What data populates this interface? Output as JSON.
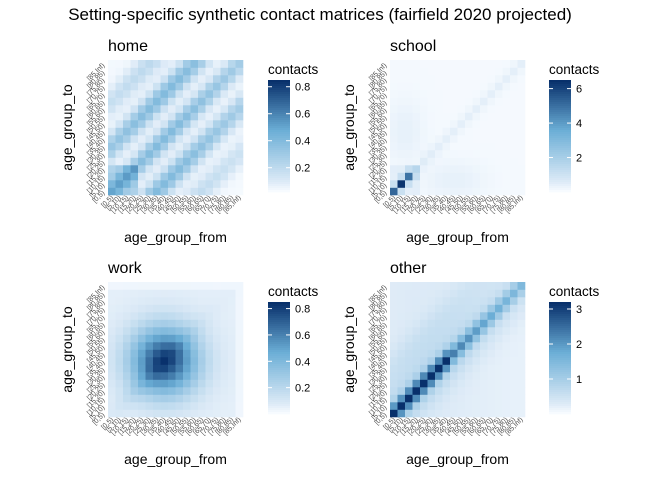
{
  "title": "Setting-specific synthetic contact matrices (fairfield 2020 projected)",
  "colors": {
    "scale_low": "#deebf7",
    "scale_mid": "#6baed6",
    "scale_high": "#08306b",
    "panel_background": "#ebf2fb"
  },
  "chart_data": [
    {
      "type": "heatmap",
      "title": "home",
      "xlabel": "age_group_from",
      "ylabel": "age_group_to",
      "age_groups": [
        "[0,5)",
        "[5,10)",
        "[10,15)",
        "[15,20)",
        "[20,25)",
        "[25,30)",
        "[30,35)",
        "[35,40)",
        "[40,45)",
        "[45,50)",
        "[50,55)",
        "[55,60)",
        "[60,65)",
        "[65,70)",
        "[70,75)",
        "[75,80)",
        "[80,85)",
        "[85,Inf)"
      ],
      "legend_title": "contacts",
      "legend_ticks": [
        0.2,
        0.4,
        0.6,
        0.8
      ],
      "value_range": [
        0.02,
        0.85
      ],
      "pattern": "home"
    },
    {
      "type": "heatmap",
      "title": "school",
      "xlabel": "age_group_from",
      "ylabel": "age_group_to",
      "age_groups": [
        "[0,5)",
        "[5,10)",
        "[10,15)",
        "[15,20)",
        "[20,25)",
        "[25,30)",
        "[30,35)",
        "[35,40)",
        "[40,45)",
        "[45,50)",
        "[50,55)",
        "[55,60)",
        "[60,65)",
        "[65,70)",
        "[70,75)",
        "[75,80)",
        "[80,85)",
        "[85,Inf)"
      ],
      "legend_title": "contacts",
      "legend_ticks": [
        2,
        4,
        6
      ],
      "value_range": [
        0.0,
        6.5
      ],
      "pattern": "school"
    },
    {
      "type": "heatmap",
      "title": "work",
      "xlabel": "age_group_from",
      "ylabel": "age_group_to",
      "age_groups": [
        "[0,5)",
        "[5,10)",
        "[10,15)",
        "[15,20)",
        "[20,25)",
        "[25,30)",
        "[30,35)",
        "[35,40)",
        "[40,45)",
        "[45,50)",
        "[50,55)",
        "[55,60)",
        "[60,65)",
        "[65,70)",
        "[70,75)",
        "[75,80)",
        "[80,85)",
        "[85,Inf)"
      ],
      "legend_title": "contacts",
      "legend_ticks": [
        0.2,
        0.4,
        0.6,
        0.8
      ],
      "value_range": [
        0.0,
        0.85
      ],
      "pattern": "work"
    },
    {
      "type": "heatmap",
      "title": "other",
      "xlabel": "age_group_from",
      "ylabel": "age_group_to",
      "age_groups": [
        "[0,5)",
        "[5,10)",
        "[10,15)",
        "[15,20)",
        "[20,25)",
        "[25,30)",
        "[30,35)",
        "[35,40)",
        "[40,45)",
        "[45,50)",
        "[50,55)",
        "[55,60)",
        "[60,65)",
        "[65,70)",
        "[70,75)",
        "[75,80)",
        "[80,85)",
        "[85,Inf)"
      ],
      "legend_title": "contacts",
      "legend_ticks": [
        1,
        2,
        3
      ],
      "value_range": [
        0.0,
        3.2
      ],
      "pattern": "other"
    }
  ]
}
